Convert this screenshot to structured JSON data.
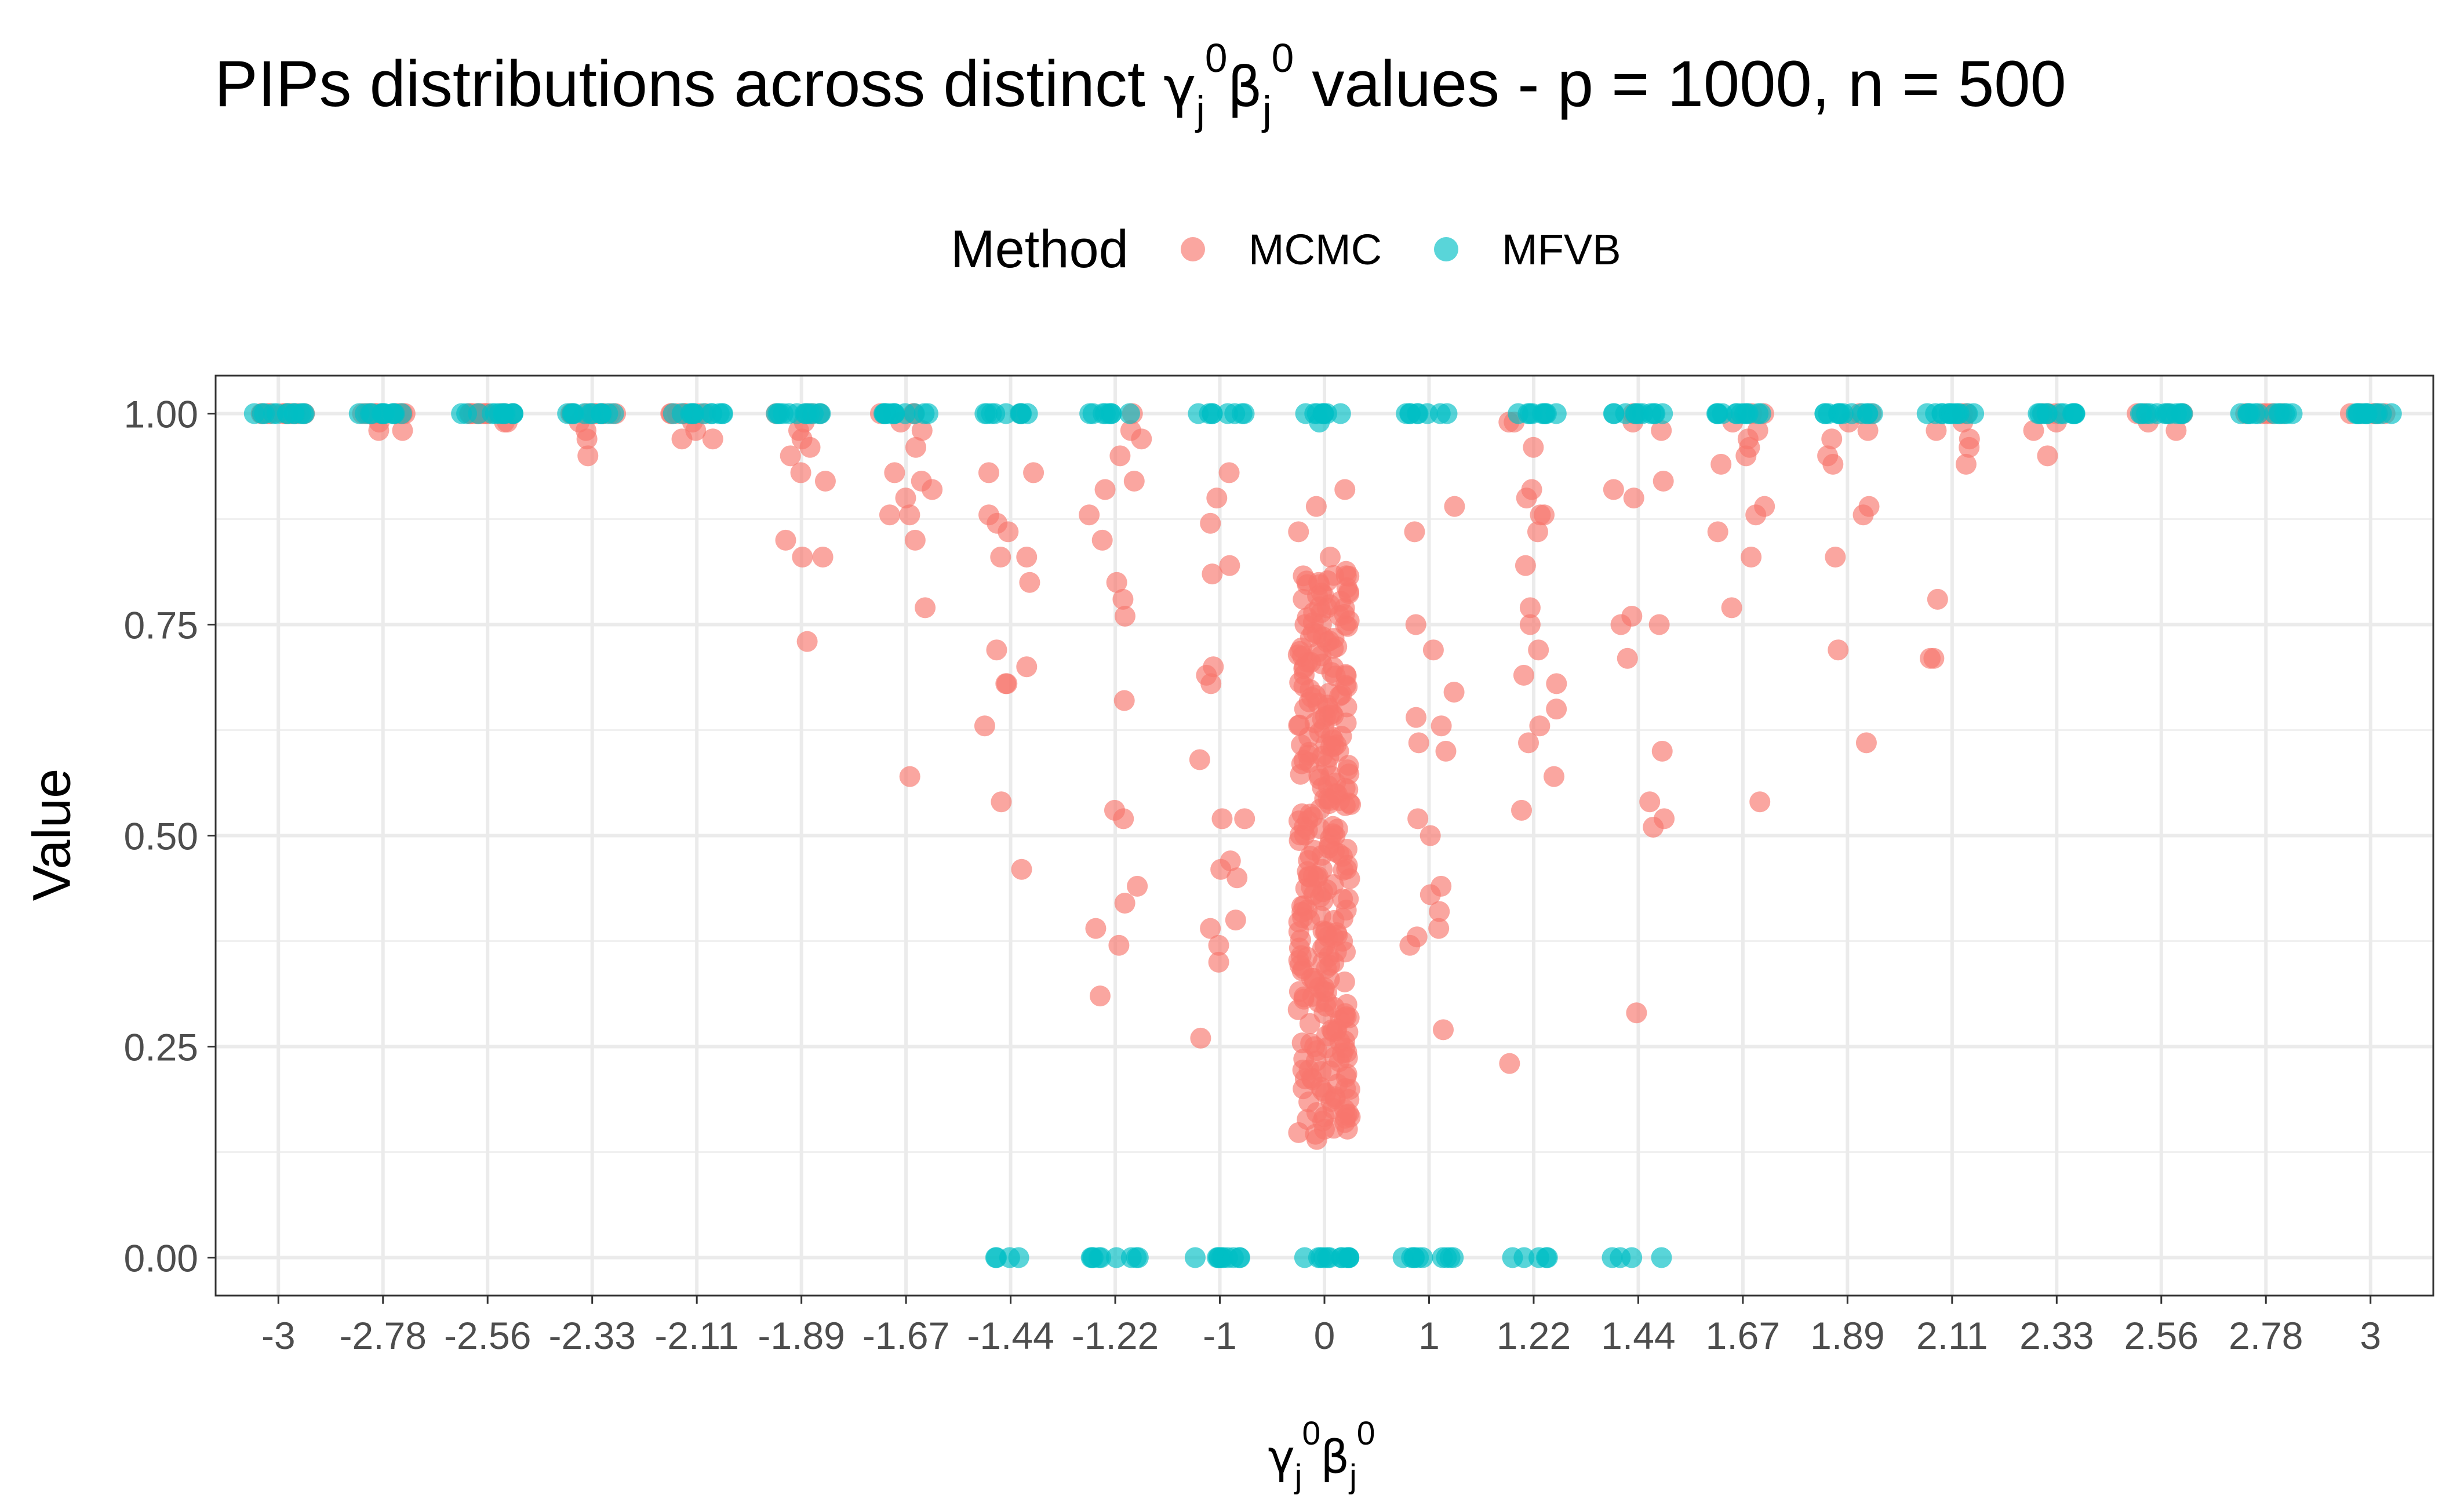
{
  "chart_data": {
    "type": "scatter",
    "title_text": "PIPs distributions across distinct",
    "title_greek_gamma": "γ",
    "title_greek_beta": "β",
    "title_sup": "0",
    "title_sub": "j",
    "title_tail": "values - p = 1000, n = 500",
    "xlabel_gamma": "γ",
    "xlabel_beta": "β",
    "xlabel_sup": "0",
    "xlabel_sub": "j",
    "ylabel": "Value",
    "legend_title": "Method",
    "legend_position": "top",
    "grid": true,
    "ylim": [
      -0.045,
      1.045
    ],
    "yticks": [
      0,
      0.25,
      0.5,
      0.75,
      1
    ],
    "ytick_labels": [
      "0.00",
      "0.25",
      "0.50",
      "0.75",
      "1.00"
    ],
    "categories": [
      "-3",
      "-2.78",
      "-2.56",
      "-2.33",
      "-2.11",
      "-1.89",
      "-1.67",
      "-1.44",
      "-1.22",
      "-1",
      "0",
      "1",
      "1.22",
      "1.44",
      "1.67",
      "1.89",
      "2.11",
      "2.33",
      "2.56",
      "2.78",
      "3"
    ],
    "series": [
      {
        "name": "MCMC",
        "color": "#F8766D",
        "points": [
          {
            "x": "-3",
            "y": [
              1,
              1,
              1,
              1,
              1,
              1,
              1,
              1,
              1,
              1,
              1,
              1,
              1,
              1,
              1
            ]
          },
          {
            "x": "-2.78",
            "y": [
              1,
              1,
              1,
              1,
              1,
              1,
              1,
              1,
              1,
              1,
              1,
              1,
              0.98,
              0.98,
              0.99
            ]
          },
          {
            "x": "-2.56",
            "y": [
              1,
              1,
              1,
              1,
              1,
              1,
              1,
              1,
              1,
              1,
              1,
              0.99,
              0.99,
              1
            ]
          },
          {
            "x": "-2.33",
            "y": [
              1,
              1,
              1,
              1,
              1,
              1,
              1,
              1,
              1,
              0.99,
              0.98,
              0.97,
              0.95,
              1
            ]
          },
          {
            "x": "-2.11",
            "y": [
              1,
              1,
              1,
              1,
              1,
              1,
              1,
              1,
              0.99,
              0.97,
              0.97,
              0.98,
              1
            ]
          },
          {
            "x": "-1.89",
            "y": [
              1,
              1,
              1,
              1,
              0.99,
              0.98,
              0.97,
              0.96,
              0.95,
              0.93,
              0.92,
              0.85,
              0.83,
              0.83,
              0.73
            ]
          },
          {
            "x": "-1.67",
            "y": [
              1,
              1,
              1,
              0.99,
              0.98,
              0.96,
              0.93,
              0.92,
              0.91,
              0.9,
              0.88,
              0.88,
              0.85,
              0.77,
              0.57
            ]
          },
          {
            "x": "-1.44",
            "y": [
              1,
              0.93,
              0.93,
              0.88,
              0.87,
              0.86,
              0.83,
              0.83,
              0.8,
              0.72,
              0.7,
              0.68,
              0.68,
              0.63,
              0.54,
              0.46
            ]
          },
          {
            "x": "-1.22",
            "y": [
              1,
              0.98,
              0.97,
              0.95,
              0.92,
              0.91,
              0.88,
              0.85,
              0.8,
              0.78,
              0.76,
              0.66,
              0.53,
              0.52,
              0.44,
              0.42,
              0.39,
              0.37,
              0.31
            ]
          },
          {
            "x": "-1",
            "y": [
              0.93,
              0.9,
              0.87,
              0.82,
              0.81,
              0.7,
              0.69,
              0.68,
              0.59,
              0.52,
              0.52,
              0.47,
              0.46,
              0.45,
              0.4,
              0.39,
              0.37,
              0.35,
              0.26
            ]
          },
          {
            "x": "0",
            "y": [
              0.91,
              0.89,
              0.86,
              0.83,
              0.8,
              0.78,
              0.75,
              0.7,
              0.65,
              0.6,
              0.55,
              0.5,
              0.45,
              0.4,
              0.35,
              0.3,
              0.25,
              0.2,
              0.16,
              0.14
            ]
          },
          {
            "x": "1",
            "y": [
              0.89,
              0.86,
              0.75,
              0.72,
              0.67,
              0.64,
              0.63,
              0.61,
              0.6,
              0.52,
              0.5,
              0.44,
              0.43,
              0.41,
              0.39,
              0.38,
              0.37,
              0.27
            ]
          },
          {
            "x": "1.22",
            "y": [
              0.99,
              0.99,
              0.96,
              0.91,
              0.9,
              0.88,
              0.88,
              0.86,
              0.82,
              0.77,
              0.75,
              0.72,
              0.69,
              0.68,
              0.65,
              0.63,
              0.61,
              0.57,
              0.53,
              0.23
            ]
          },
          {
            "x": "1.44",
            "y": [
              1,
              0.99,
              0.98,
              0.92,
              0.91,
              0.9,
              0.76,
              0.75,
              0.75,
              0.71,
              0.6,
              0.54,
              0.52,
              0.51,
              0.29
            ]
          },
          {
            "x": "1.67",
            "y": [
              1,
              1,
              0.99,
              0.98,
              0.97,
              0.96,
              0.95,
              0.94,
              0.89,
              0.88,
              0.86,
              0.83,
              0.77,
              0.54
            ]
          },
          {
            "x": "1.89",
            "y": [
              1,
              1,
              0.99,
              0.98,
              0.97,
              0.95,
              0.94,
              0.89,
              0.88,
              0.83,
              0.72,
              0.61
            ]
          },
          {
            "x": "2.11",
            "y": [
              1,
              1,
              0.99,
              0.98,
              0.97,
              0.96,
              0.94,
              0.78,
              0.71,
              0.71
            ]
          },
          {
            "x": "2.33",
            "y": [
              1,
              1,
              1,
              0.99,
              0.98,
              0.95
            ]
          },
          {
            "x": "2.56",
            "y": [
              1,
              1,
              1,
              1,
              0.99,
              0.98
            ]
          },
          {
            "x": "2.78",
            "y": [
              1,
              1,
              1,
              1,
              1,
              1
            ]
          },
          {
            "x": "3",
            "y": [
              1,
              1,
              1,
              1,
              1,
              1,
              1,
              1
            ]
          }
        ]
      },
      {
        "name": "MFVB",
        "color": "#00BFC4",
        "points": [
          {
            "x": "-3",
            "y": [
              1,
              1,
              1,
              1,
              1,
              1,
              1,
              1,
              1,
              1,
              1,
              1
            ]
          },
          {
            "x": "-2.78",
            "y": [
              1,
              1,
              1,
              1,
              1,
              1,
              1,
              1,
              1,
              1,
              1,
              1
            ]
          },
          {
            "x": "-2.56",
            "y": [
              1,
              1,
              1,
              1,
              1,
              1,
              1,
              1,
              1,
              1,
              1,
              1
            ]
          },
          {
            "x": "-2.33",
            "y": [
              1,
              1,
              1,
              1,
              1,
              1,
              1,
              1,
              1,
              1,
              1,
              1
            ]
          },
          {
            "x": "-2.11",
            "y": [
              1,
              1,
              1,
              1,
              1,
              1,
              1,
              1,
              1,
              1,
              1,
              1
            ]
          },
          {
            "x": "-1.89",
            "y": [
              1,
              1,
              1,
              1,
              1,
              1,
              1,
              1,
              1,
              1,
              1,
              1
            ]
          },
          {
            "x": "-1.67",
            "y": [
              1,
              1,
              1,
              1,
              1,
              1,
              1,
              1,
              1,
              1,
              1,
              1
            ]
          },
          {
            "x": "-1.44",
            "y": [
              1,
              1,
              1,
              1,
              1,
              1,
              1,
              1,
              1,
              0,
              0,
              0,
              0
            ]
          },
          {
            "x": "-1.22",
            "y": [
              1,
              1,
              1,
              1,
              1,
              1,
              1,
              1,
              0,
              0,
              0,
              0,
              0,
              0,
              0,
              0,
              0
            ]
          },
          {
            "x": "-1",
            "y": [
              1,
              1,
              1,
              1,
              1,
              1,
              1,
              1,
              0,
              0,
              0,
              0,
              0,
              0,
              0,
              0,
              0,
              0
            ]
          },
          {
            "x": "0",
            "y": [
              1,
              1,
              1,
              1,
              1,
              1,
              1,
              1,
              0.99,
              0,
              0,
              0,
              0,
              0,
              0,
              0,
              0,
              0,
              0,
              0,
              0
            ]
          },
          {
            "x": "1",
            "y": [
              1,
              1,
              1,
              1,
              1,
              1,
              1,
              1,
              0,
              0,
              0,
              0,
              0,
              0,
              0,
              0,
              0,
              0
            ]
          },
          {
            "x": "1.22",
            "y": [
              1,
              1,
              1,
              1,
              1,
              1,
              1,
              1,
              1,
              0,
              0,
              0,
              0,
              0
            ]
          },
          {
            "x": "1.44",
            "y": [
              1,
              1,
              1,
              1,
              1,
              1,
              1,
              1,
              1,
              1,
              1,
              0,
              0,
              0,
              0
            ]
          },
          {
            "x": "1.67",
            "y": [
              1,
              1,
              1,
              1,
              1,
              1,
              1,
              1,
              1,
              1,
              1,
              1
            ]
          },
          {
            "x": "1.89",
            "y": [
              1,
              1,
              1,
              1,
              1,
              1,
              1,
              1,
              1,
              1,
              1,
              1
            ]
          },
          {
            "x": "2.11",
            "y": [
              1,
              1,
              1,
              1,
              1,
              1,
              1,
              1,
              1,
              1,
              1,
              1
            ]
          },
          {
            "x": "2.33",
            "y": [
              1,
              1,
              1,
              1,
              1,
              1,
              1,
              1,
              1,
              1,
              1,
              1
            ]
          },
          {
            "x": "2.56",
            "y": [
              1,
              1,
              1,
              1,
              1,
              1,
              1,
              1,
              1,
              1,
              1,
              1
            ]
          },
          {
            "x": "2.78",
            "y": [
              1,
              1,
              1,
              1,
              1,
              1,
              1,
              1,
              1,
              1,
              1,
              1
            ]
          },
          {
            "x": "3",
            "y": [
              1,
              1,
              1,
              1,
              1,
              1,
              1,
              1,
              1,
              1,
              1,
              1
            ]
          }
        ]
      }
    ]
  }
}
